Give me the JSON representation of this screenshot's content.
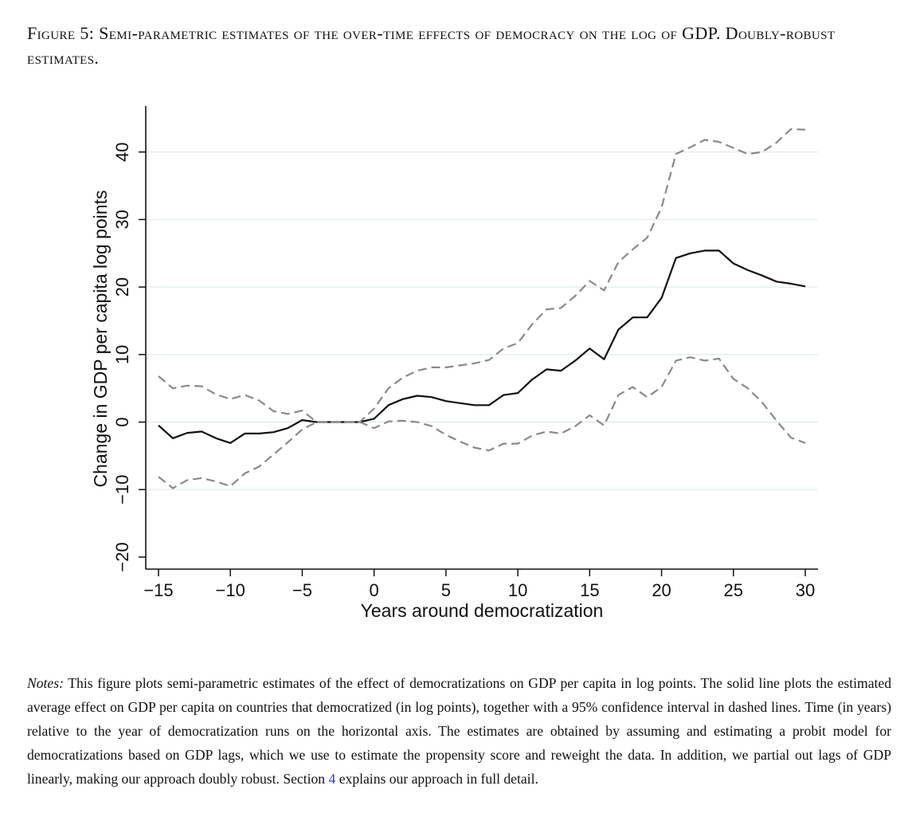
{
  "figure": {
    "caption": "Figure 5: Semi-parametric estimates of the over-time effects of democracy on the log of GDP. Doubly-robust estimates."
  },
  "chart_data": {
    "type": "line",
    "title": "",
    "xlabel": "Years around democratization",
    "ylabel": "Change in GDP per capita log points",
    "xlim": [
      -15,
      30
    ],
    "ylim": [
      -20,
      45
    ],
    "x_ticks": [
      "−15",
      "−10",
      "−5",
      "0",
      "5",
      "10",
      "15",
      "20",
      "25",
      "30"
    ],
    "x_tick_values": [
      -15,
      -10,
      -5,
      0,
      5,
      10,
      15,
      20,
      25,
      30
    ],
    "y_ticks": [
      "−20",
      "−10",
      "0",
      "10",
      "20",
      "30",
      "40"
    ],
    "y_tick_values": [
      -20,
      -10,
      0,
      10,
      20,
      30,
      40
    ],
    "grid": "horizontal",
    "x": [
      -15,
      -14,
      -13,
      -12,
      -11,
      -10,
      -9,
      -8,
      -7,
      -6,
      -5,
      -4,
      -3,
      -2,
      -1,
      0,
      1,
      2,
      3,
      4,
      5,
      6,
      7,
      8,
      9,
      10,
      11,
      12,
      13,
      14,
      15,
      16,
      17,
      18,
      19,
      20,
      21,
      22,
      23,
      24,
      25,
      26,
      27,
      28,
      29,
      30
    ],
    "series": [
      {
        "role": "estimate",
        "style": "solid",
        "color": "#111111",
        "values": [
          -0.5,
          -2.4,
          -1.6,
          -1.4,
          -2.4,
          -3.1,
          -1.7,
          -1.7,
          -1.5,
          -0.9,
          0.3,
          0,
          0,
          0,
          0,
          0.5,
          2.5,
          3.4,
          3.9,
          3.7,
          3.1,
          2.8,
          2.5,
          2.5,
          4.0,
          4.3,
          6.3,
          7.8,
          7.6,
          9.1,
          10.9,
          9.3,
          13.7,
          15.5,
          15.5,
          18.4,
          24.3,
          25.0,
          25.4,
          25.4,
          23.5,
          22.5,
          21.7,
          20.8,
          20.5,
          20.1
        ]
      },
      {
        "role": "ci_upper",
        "style": "dashed",
        "color": "#8a8a8a",
        "values": [
          6.8,
          5.0,
          5.4,
          5.3,
          4.1,
          3.4,
          4.0,
          3.2,
          1.6,
          1.2,
          1.7,
          0,
          0,
          0,
          0,
          2.0,
          5.0,
          6.6,
          7.6,
          8.1,
          8.1,
          8.4,
          8.7,
          9.2,
          10.9,
          11.7,
          14.5,
          16.7,
          16.9,
          18.7,
          20.9,
          19.5,
          23.7,
          25.6,
          27.3,
          31.8,
          39.7,
          40.7,
          41.8,
          41.5,
          40.6,
          39.7,
          40.0,
          41.4,
          43.4,
          43.3
        ]
      },
      {
        "role": "ci_lower",
        "style": "dashed",
        "color": "#8a8a8a",
        "values": [
          -8.1,
          -9.8,
          -8.6,
          -8.3,
          -8.8,
          -9.5,
          -7.6,
          -6.6,
          -4.8,
          -3.0,
          -1.1,
          0,
          0,
          0,
          0,
          -0.9,
          0.1,
          0.2,
          0,
          -0.6,
          -1.9,
          -2.9,
          -3.8,
          -4.2,
          -3.2,
          -3.2,
          -2,
          -1.4,
          -1.7,
          -0.6,
          1.0,
          -0.5,
          4.0,
          5.2,
          3.7,
          5.2,
          9.1,
          9.6,
          9.1,
          9.4,
          6.4,
          5.0,
          2.9,
          0.2,
          -2.3,
          -3.1
        ]
      }
    ]
  },
  "notes": {
    "lead": "Notes:",
    "body": " This figure plots semi-parametric estimates of the effect of democratizations on GDP per capita in log points. The solid line plots the estimated average effect on GDP per capita on countries that democratized (in log points), together with a 95% confidence interval in dashed lines. Time (in years) relative to the year of democratization runs on the horizontal axis. The estimates are obtained by assuming and estimating a probit model for democratizations based on GDP lags, which we use to estimate the propensity score and reweight the data. In addition, we partial out lags of GDP linearly, making our approach doubly robust. Section ",
    "section_ref": "4",
    "tail": " explains our approach in full detail."
  }
}
